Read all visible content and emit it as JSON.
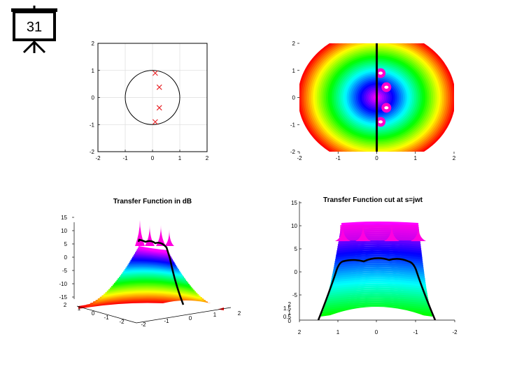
{
  "slide": {
    "number": "31",
    "icon": "presentation-board-icon"
  },
  "chart_data": [
    {
      "id": "pole-zero",
      "type": "scatter",
      "title": "",
      "xlim": [
        -2,
        2
      ],
      "ylim": [
        -2,
        2
      ],
      "xticks": [
        "-2",
        "-1",
        "0",
        "1",
        "2"
      ],
      "yticks": [
        "2",
        "1",
        "0",
        "-1",
        "-2"
      ],
      "grid": true,
      "unit_circle": true,
      "marker": "x",
      "marker_color": "#e8262a",
      "points": [
        {
          "x": 0.1,
          "y": 0.9
        },
        {
          "x": 0.25,
          "y": 0.38
        },
        {
          "x": 0.25,
          "y": -0.38
        },
        {
          "x": 0.1,
          "y": -0.9
        }
      ]
    },
    {
      "id": "magnitude-map",
      "type": "heatmap",
      "title": "",
      "xlim": [
        -2,
        2
      ],
      "ylim": [
        -2,
        2
      ],
      "xticks": [
        "-2",
        "-1",
        "0",
        "1",
        "2"
      ],
      "yticks": [
        "2",
        "1",
        "0",
        "-1",
        "-2"
      ],
      "colormap": "hsv",
      "imag_axis_line_color": "#000000",
      "poles": [
        {
          "x": 0.1,
          "y": 0.9
        },
        {
          "x": 0.25,
          "y": 0.38
        },
        {
          "x": 0.25,
          "y": -0.38
        },
        {
          "x": 0.1,
          "y": -0.9
        }
      ]
    },
    {
      "id": "surface-3d",
      "type": "area",
      "title": "Transfer Function in dB",
      "zticks": [
        "15",
        "10",
        "5",
        "0",
        "-5",
        "-10",
        "-15"
      ],
      "yticks": [
        "2",
        "1",
        "0",
        "-1",
        "-2"
      ],
      "xticks": [
        "-2",
        "-1",
        "0",
        "1",
        "2"
      ],
      "colormap": "hsv"
    },
    {
      "id": "cut-view",
      "type": "area",
      "title": "Transfer Function cut at s=jwt",
      "zticks": [
        "15",
        "10",
        "5",
        "0",
        "-5"
      ],
      "small_ticks": [
        "2",
        "1.5",
        "1",
        "0.5",
        "0"
      ],
      "xticks": [
        "2",
        "1",
        "0",
        "-1",
        "-2"
      ],
      "colormap": "hsv"
    }
  ]
}
